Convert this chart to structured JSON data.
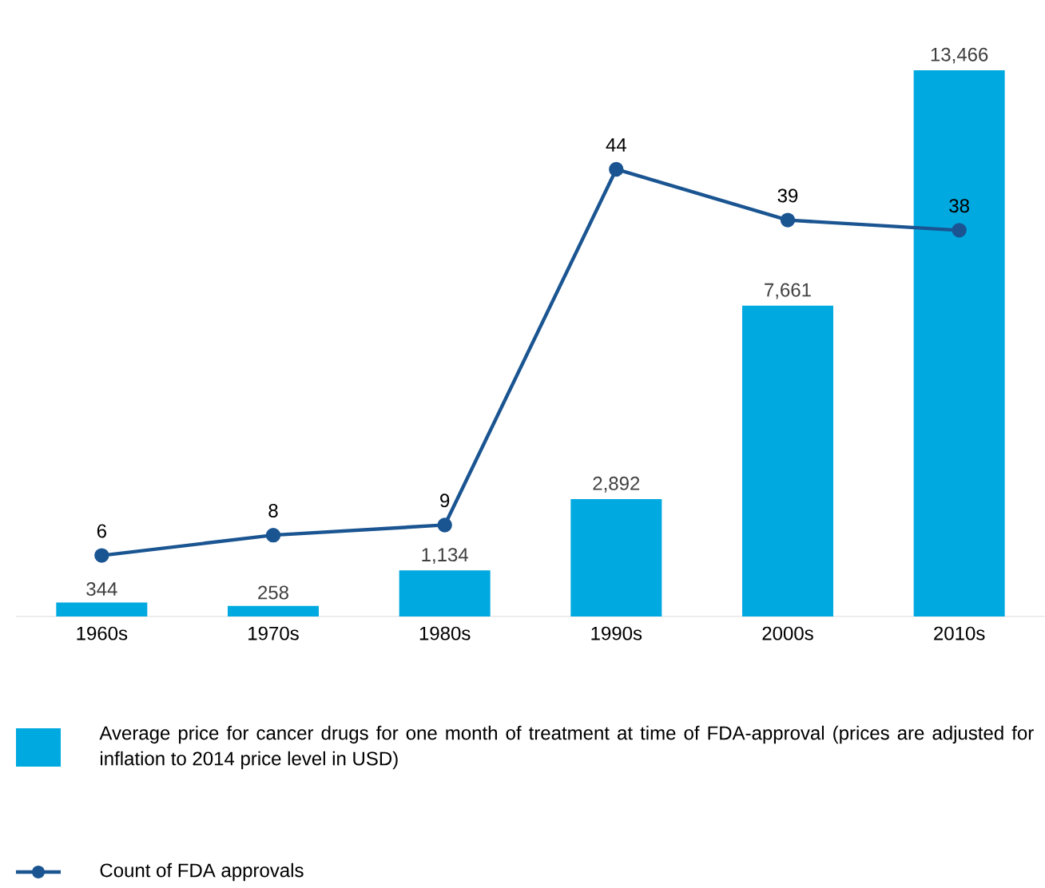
{
  "chart_data": {
    "type": "bar",
    "categories": [
      "1960s",
      "1970s",
      "1980s",
      "1990s",
      "2000s",
      "2010s"
    ],
    "series": [
      {
        "name": "Average price for cancer drugs for one month of treatment at time of FDA-approval (prices are adjusted for inflation to 2014 price level in USD)",
        "color": "#00a9e0",
        "values": [
          344,
          258,
          1134,
          2892,
          7661,
          13466
        ],
        "value_labels": [
          "344",
          "258",
          "1,134",
          "2,892",
          "7,661",
          "13,466"
        ]
      },
      {
        "name": "Count of FDA approvals",
        "type": "line",
        "axis": "y2",
        "color": "#1a5592",
        "values": [
          6,
          8,
          9,
          44,
          39,
          38
        ],
        "value_labels": [
          "6",
          "8",
          "9",
          "44",
          "39",
          "38"
        ]
      }
    ],
    "legend": "bottom",
    "marker": "circle",
    "tick_labels": "x"
  }
}
